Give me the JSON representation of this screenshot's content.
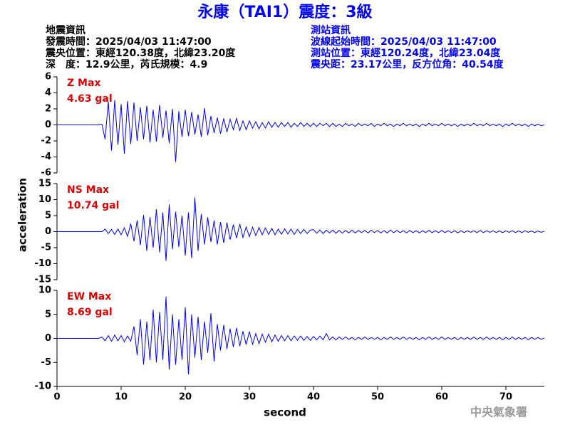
{
  "header": {
    "title": "永康（TAI1）震度：3級",
    "quake_info": [
      "地震資訊",
      "發震時間：2025/04/03 11:47:00",
      "震央位置：東經120.38度，北緯23.20度",
      "深　度：12.9公里，芮氏規模：4.9"
    ],
    "station_info": [
      "測站資訊",
      "波線起始時間：2025/04/03 11:47:00",
      "測站位置：東經120.24度，北緯23.04度",
      "震央距：23.17公里，反方位角：40.54度"
    ],
    "footer": "中央氣象署"
  },
  "chart_data": {
    "type": "line",
    "x_label": "second",
    "y_label": "acceleration",
    "xlim": [
      0,
      76
    ],
    "xticks": [
      0,
      10,
      20,
      30,
      40,
      50,
      60,
      70
    ],
    "x": [
      0,
      0.5,
      1,
      1.5,
      2,
      2.5,
      3,
      3.5,
      4,
      4.5,
      5,
      5.5,
      6,
      6.5,
      7,
      7.5,
      8,
      8.5,
      9,
      9.5,
      10,
      10.5,
      11,
      11.5,
      12,
      12.5,
      13,
      13.5,
      14,
      14.5,
      15,
      15.5,
      16,
      16.5,
      17,
      17.5,
      18,
      18.5,
      19,
      19.5,
      20,
      20.5,
      21,
      21.5,
      22,
      22.5,
      23,
      23.5,
      24,
      24.5,
      25,
      25.5,
      26,
      26.5,
      27,
      27.5,
      28,
      28.5,
      29,
      29.5,
      30,
      30.5,
      31,
      31.5,
      32,
      32.5,
      33,
      33.5,
      34,
      34.5,
      35,
      35.5,
      36,
      36.5,
      37,
      37.5,
      38,
      38.5,
      39,
      39.5,
      40,
      40.5,
      41,
      41.5,
      42,
      42.5,
      43,
      43.5,
      44,
      44.5,
      45,
      45.5,
      46,
      46.5,
      47,
      47.5,
      48,
      48.5,
      49,
      49.5,
      50,
      50.5,
      51,
      51.5,
      52,
      52.5,
      53,
      53.5,
      54,
      54.5,
      55,
      55.5,
      56,
      56.5,
      57,
      57.5,
      58,
      58.5,
      59,
      59.5,
      60,
      60.5,
      61,
      61.5,
      62,
      62.5,
      63,
      63.5,
      64,
      64.5,
      65,
      65.5,
      66,
      66.5,
      67,
      67.5,
      68,
      68.5,
      69,
      69.5,
      70,
      70.5,
      71,
      71.5,
      72,
      72.5,
      73,
      73.5,
      74,
      74.5,
      75,
      75.5,
      76
    ],
    "panels": [
      {
        "label": "Z Max",
        "max_label": "4.63 gal",
        "color": "#0000ff",
        "ylim": [
          -6,
          6
        ],
        "yticks": [
          -6,
          -4,
          -2,
          0,
          2,
          4,
          6
        ],
        "values": [
          0,
          0,
          0,
          0,
          0,
          0,
          0,
          0,
          0,
          0,
          0,
          0,
          0,
          0,
          0.1,
          -1.8,
          2.9,
          -3.2,
          3.1,
          -2.5,
          2.6,
          -3.6,
          3.0,
          -2.4,
          2.8,
          -2.0,
          2.2,
          -1.8,
          2.4,
          -2.2,
          1.9,
          -2.1,
          2.5,
          -1.6,
          1.8,
          -2.3,
          2.0,
          -4.63,
          1.7,
          -1.5,
          1.9,
          -1.4,
          1.6,
          -1.2,
          1.3,
          -1.5,
          2.1,
          -1.3,
          1.1,
          -1.0,
          0.9,
          -1.1,
          0.8,
          -0.9,
          0.7,
          -0.6,
          0.8,
          -0.7,
          0.5,
          -0.6,
          0.5,
          -0.4,
          0.4,
          -0.5,
          0.3,
          -0.4,
          0.4,
          -0.3,
          0.3,
          -0.3,
          0.3,
          -0.2,
          0.3,
          -0.3,
          0.2,
          -0.2,
          0.3,
          -0.2,
          0.2,
          -0.2,
          0.2,
          -0.2,
          0.2,
          -0.1,
          0.2,
          -0.2,
          0.2,
          -0.2,
          0.1,
          -0.2,
          0.2,
          -0.1,
          0.1,
          -0.2,
          0.2,
          -0.1,
          0.1,
          -0.1,
          0.2,
          -0.2,
          0.1,
          -0.1,
          0.2,
          -0.1,
          0.1,
          -0.2,
          0.1,
          -0.1,
          0.2,
          -0.1,
          0.1,
          -0.1,
          0.1,
          -0.2,
          0.1,
          -0.1,
          0.2,
          -0.1,
          0.1,
          -0.1,
          0.2,
          -0.1,
          0.1,
          -0.1,
          0.1,
          -0.2,
          0.1,
          -0.1,
          0.1,
          -0.1,
          0.2,
          -0.1,
          0.1,
          -0.1,
          0.2,
          -0.1,
          0.1,
          -0.1,
          0.1,
          -0.2,
          0.1,
          -0.1,
          0.2,
          -0.1,
          0.1,
          -0.1,
          0.1,
          -0.2,
          0.1,
          -0.1,
          0.1,
          -0.1,
          0
        ]
      },
      {
        "label": "NS Max",
        "max_label": "10.74 gal",
        "color": "#0000ff",
        "ylim": [
          -15,
          15
        ],
        "yticks": [
          -15,
          -10,
          -5,
          0,
          5,
          10,
          15
        ],
        "values": [
          0,
          0,
          0,
          0,
          0,
          0,
          0,
          0,
          0,
          0,
          0,
          0,
          0,
          0,
          0,
          0.8,
          -0.6,
          0.7,
          -0.9,
          0.8,
          -1.0,
          1.2,
          -1.5,
          2.5,
          -3.0,
          3.5,
          -4.2,
          5.2,
          -6.0,
          4.5,
          -5.0,
          7.0,
          -6.5,
          6.0,
          -9.1,
          8.5,
          -5.5,
          6.2,
          -4.8,
          5.0,
          -7.5,
          6.0,
          -8.3,
          10.74,
          -6.0,
          5.5,
          -4.0,
          4.5,
          -3.2,
          3.5,
          -4.0,
          3.0,
          -3.5,
          2.8,
          -2.5,
          2.2,
          -2.0,
          2.4,
          -1.8,
          1.5,
          -1.6,
          1.4,
          -1.2,
          1.3,
          -1.0,
          1.2,
          -0.9,
          1.0,
          -1.0,
          0.8,
          -0.8,
          0.9,
          -0.7,
          0.8,
          -0.9,
          0.7,
          -0.6,
          0.7,
          -0.6,
          0.5,
          0.6,
          -0.5,
          0.5,
          -0.6,
          0.5,
          -0.4,
          0.5,
          -0.5,
          0.4,
          -0.5,
          0.4,
          -0.4,
          0.5,
          -0.4,
          0.4,
          -0.3,
          0.4,
          -0.4,
          0.5,
          -0.3,
          0.4,
          -0.4,
          0.3,
          -0.4,
          0.5,
          -0.3,
          0.4,
          -0.3,
          0.3,
          -0.4,
          0.4,
          -0.3,
          0.3,
          -0.4,
          0.3,
          -0.3,
          0.4,
          -0.3,
          0.3,
          -0.3,
          0.4,
          -0.3,
          0.3,
          -0.3,
          0.3,
          -0.4,
          0.3,
          -0.3,
          0.3,
          -0.2,
          0.3,
          -0.3,
          0.4,
          -0.3,
          0.3,
          -0.2,
          0.3,
          -0.3,
          0.2,
          -0.3,
          0.3,
          -0.2,
          0.3,
          -0.3,
          0.2,
          -0.3,
          0.3,
          -0.2,
          0.2,
          -0.3,
          0.2,
          -0.2,
          0.1
        ]
      },
      {
        "label": "EW Max",
        "max_label": "8.69 gal",
        "color": "#0000ff",
        "ylim": [
          -10,
          10
        ],
        "yticks": [
          -10,
          -5,
          0,
          5,
          10
        ],
        "values": [
          0,
          0,
          0,
          0,
          0,
          0,
          0,
          0,
          0,
          0,
          0,
          0,
          0,
          0,
          0.3,
          -0.5,
          0.6,
          -0.6,
          0.7,
          -0.5,
          0.6,
          -0.7,
          0.5,
          -0.6,
          2.5,
          -3.5,
          4.0,
          -5.5,
          3.5,
          -4.5,
          6.0,
          -5.0,
          5.5,
          -4.5,
          8.69,
          -6.5,
          5.0,
          -5.5,
          4.0,
          -4.5,
          6.5,
          -7.5,
          5.0,
          -4.0,
          4.5,
          -4.5,
          3.5,
          -3.0,
          5.2,
          -4.8,
          3.0,
          -2.5,
          2.8,
          -2.2,
          2.0,
          -1.8,
          2.2,
          -1.6,
          1.5,
          -1.3,
          1.4,
          -1.2,
          1.0,
          -1.1,
          0.9,
          -0.8,
          0.9,
          -0.7,
          0.7,
          -0.6,
          0.6,
          -0.5,
          0.6,
          -0.5,
          0.5,
          -0.4,
          0.5,
          -0.4,
          0.4,
          -0.4,
          0.4,
          -0.3,
          0.5,
          -0.3,
          1.0,
          -0.3,
          0.3,
          -0.3,
          0.3,
          -0.2,
          0.3,
          -0.2,
          0.2,
          -0.3,
          0.2,
          -0.2,
          0.3,
          -0.2,
          0.2,
          -0.2,
          0.2,
          -0.3,
          0.2,
          -0.2,
          0.3,
          -0.2,
          0.2,
          -0.2,
          0.3,
          -0.2,
          0.2,
          -0.2,
          0.2,
          -0.3,
          0.2,
          -0.2,
          0.3,
          -0.2,
          0.2,
          -0.2,
          0.3,
          -0.2,
          0.2,
          -0.2,
          0.2,
          -0.3,
          0.2,
          -0.2,
          0.2,
          -0.2,
          0.3,
          -0.2,
          0.2,
          -0.2,
          0.3,
          -0.2,
          0.2,
          -0.2,
          0.2,
          -0.3,
          0.2,
          -0.2,
          0.3,
          -0.2,
          0.2,
          -0.2,
          0.2,
          -0.3,
          0.2,
          -0.2,
          0.2,
          -0.2,
          0.1
        ]
      }
    ]
  }
}
